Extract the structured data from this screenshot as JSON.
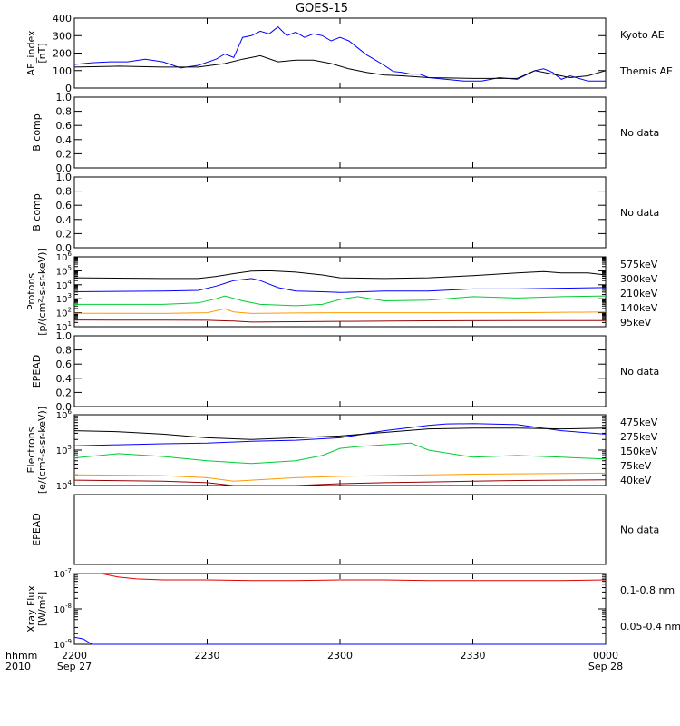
{
  "title": "GOES-15",
  "time_axis": {
    "corner_labels": [
      "hhmm",
      "2010"
    ],
    "ticks": [
      {
        "hhmm": "2200",
        "date": "Sep 27",
        "min": 0
      },
      {
        "hhmm": "2230",
        "date": "",
        "min": 30
      },
      {
        "hhmm": "2300",
        "date": "",
        "min": 60
      },
      {
        "hhmm": "2330",
        "date": "",
        "min": 90
      },
      {
        "hhmm": "0000",
        "date": "Sep 28",
        "min": 120
      }
    ]
  },
  "chart_data": [
    {
      "id": "ae",
      "type": "line",
      "ylabel": [
        "AE_index",
        "[nT]"
      ],
      "scale": "linear",
      "ylim": [
        0,
        400
      ],
      "yticks": [
        0,
        100,
        200,
        300,
        400
      ],
      "series": [
        {
          "name": "Kyoto AE",
          "color": "#0000ff",
          "x": [
            0,
            4,
            8,
            12,
            16,
            20,
            24,
            28,
            32,
            34,
            36,
            38,
            40,
            42,
            44,
            46,
            48,
            50,
            52,
            54,
            56,
            58,
            60,
            62,
            64,
            66,
            68,
            70,
            72,
            74,
            76,
            78,
            80,
            84,
            88,
            92,
            96,
            100,
            104,
            106,
            108,
            110,
            112,
            116,
            120
          ],
          "y": [
            135,
            145,
            150,
            150,
            165,
            150,
            115,
            130,
            165,
            195,
            175,
            290,
            300,
            325,
            310,
            350,
            300,
            320,
            290,
            310,
            300,
            270,
            290,
            270,
            230,
            190,
            160,
            130,
            95,
            90,
            80,
            80,
            60,
            50,
            40,
            40,
            60,
            50,
            100,
            110,
            90,
            50,
            70,
            40,
            40
          ]
        },
        {
          "name": "Themis AE",
          "color": "#000000",
          "x": [
            0,
            10,
            20,
            28,
            34,
            38,
            42,
            46,
            50,
            54,
            58,
            62,
            66,
            70,
            74,
            80,
            90,
            100,
            104,
            108,
            112,
            116,
            120
          ],
          "y": [
            120,
            125,
            120,
            120,
            140,
            165,
            185,
            150,
            160,
            160,
            140,
            110,
            90,
            75,
            70,
            60,
            55,
            55,
            100,
            80,
            60,
            70,
            100
          ]
        }
      ]
    },
    {
      "id": "bcomp1",
      "type": "line",
      "ylabel": [
        "B comp"
      ],
      "scale": "linear",
      "ylim": [
        0,
        1
      ],
      "yticks": [
        0.0,
        0.2,
        0.4,
        0.6,
        0.8,
        1.0
      ],
      "series": [],
      "note": "No data"
    },
    {
      "id": "bcomp2",
      "type": "line",
      "ylabel": [
        "B comp"
      ],
      "scale": "linear",
      "ylim": [
        0,
        1
      ],
      "yticks": [
        0.0,
        0.2,
        0.4,
        0.6,
        0.8,
        1.0
      ],
      "series": [],
      "note": "No data"
    },
    {
      "id": "protons",
      "type": "line",
      "ylabel": [
        "Protons",
        "[p/(cm²-s-sr-keV)]"
      ],
      "scale": "log",
      "ylim": [
        10,
        1000000
      ],
      "yticks": [
        1,
        2,
        3,
        4,
        5,
        6
      ],
      "series": [
        {
          "name": "575keV",
          "color": "#990000",
          "x": [
            0,
            20,
            30,
            36,
            40,
            50,
            60,
            80,
            100,
            120
          ],
          "y": [
            1.48,
            1.47,
            1.46,
            1.4,
            1.33,
            1.36,
            1.38,
            1.42,
            1.44,
            1.44
          ]
        },
        {
          "name": "300keV",
          "color": "#ff9900",
          "x": [
            0,
            20,
            30,
            34,
            36,
            40,
            50,
            60,
            80,
            100,
            120
          ],
          "y": [
            1.96,
            1.95,
            2.0,
            2.28,
            2.05,
            1.95,
            1.98,
            2.0,
            2.0,
            2.0,
            2.05
          ]
        },
        {
          "name": "210keV",
          "color": "#00cc33",
          "x": [
            0,
            20,
            28,
            32,
            34,
            38,
            42,
            50,
            56,
            60,
            64,
            70,
            80,
            90,
            100,
            110,
            120
          ],
          "y": [
            2.6,
            2.6,
            2.7,
            3.0,
            3.2,
            2.85,
            2.6,
            2.5,
            2.6,
            2.95,
            3.15,
            2.85,
            2.9,
            3.15,
            3.05,
            3.15,
            3.2
          ]
        },
        {
          "name": "140keV",
          "color": "#0000ff",
          "x": [
            0,
            20,
            28,
            32,
            36,
            40,
            42,
            46,
            50,
            56,
            60,
            70,
            80,
            90,
            100,
            110,
            120
          ],
          "y": [
            3.5,
            3.55,
            3.6,
            3.9,
            4.3,
            4.45,
            4.3,
            3.8,
            3.55,
            3.5,
            3.45,
            3.55,
            3.55,
            3.7,
            3.7,
            3.75,
            3.8
          ]
        },
        {
          "name": "95keV",
          "color": "#000000",
          "x": [
            0,
            20,
            28,
            32,
            36,
            40,
            44,
            50,
            56,
            60,
            70,
            80,
            90,
            100,
            106,
            110,
            116,
            120
          ],
          "y": [
            4.5,
            4.45,
            4.45,
            4.6,
            4.8,
            4.98,
            5.0,
            4.9,
            4.7,
            4.5,
            4.45,
            4.5,
            4.65,
            4.85,
            4.95,
            4.85,
            4.85,
            4.7
          ]
        }
      ]
    },
    {
      "id": "epead1",
      "type": "line",
      "ylabel": [
        "EPEAD"
      ],
      "scale": "linear",
      "ylim": [
        0,
        1
      ],
      "yticks": [
        0.0,
        0.2,
        0.4,
        0.6,
        0.8,
        1.0
      ],
      "series": [],
      "note": "No data"
    },
    {
      "id": "electrons",
      "type": "line",
      "ylabel": [
        "Electrons",
        "[e/(cm²-s-sr-keV)]"
      ],
      "scale": "log",
      "ylim": [
        10000,
        1000000
      ],
      "yticks": [
        4,
        5,
        6
      ],
      "series": [
        {
          "name": "475keV",
          "color": "#990000",
          "x": [
            0,
            20,
            30,
            36,
            40,
            50,
            60,
            70,
            80,
            90,
            100,
            110,
            120
          ],
          "y": [
            4.15,
            4.12,
            4.08,
            3.98,
            3.95,
            4.0,
            4.05,
            4.08,
            4.1,
            4.12,
            4.14,
            4.15,
            4.16
          ]
        },
        {
          "name": "275keV",
          "color": "#ff9900",
          "x": [
            0,
            20,
            30,
            36,
            40,
            50,
            60,
            70,
            80,
            90,
            100,
            110,
            120
          ],
          "y": [
            4.3,
            4.28,
            4.22,
            4.12,
            4.15,
            4.22,
            4.26,
            4.28,
            4.3,
            4.32,
            4.33,
            4.34,
            4.35
          ]
        },
        {
          "name": "150keV",
          "color": "#00cc33",
          "x": [
            0,
            10,
            20,
            30,
            40,
            50,
            56,
            60,
            64,
            70,
            76,
            80,
            90,
            100,
            110,
            120
          ],
          "y": [
            4.78,
            4.9,
            4.82,
            4.7,
            4.62,
            4.7,
            4.85,
            5.05,
            5.1,
            5.15,
            5.2,
            5.0,
            4.8,
            4.85,
            4.8,
            4.75
          ]
        },
        {
          "name": "75keV",
          "color": "#0000ff",
          "x": [
            0,
            10,
            20,
            30,
            40,
            50,
            60,
            70,
            80,
            84,
            90,
            100,
            110,
            120
          ],
          "y": [
            5.12,
            5.15,
            5.18,
            5.2,
            5.25,
            5.28,
            5.35,
            5.55,
            5.7,
            5.74,
            5.75,
            5.72,
            5.55,
            5.45
          ]
        },
        {
          "name": "40keV",
          "color": "#000000",
          "x": [
            0,
            10,
            20,
            30,
            40,
            50,
            60,
            70,
            80,
            90,
            100,
            110,
            120
          ],
          "y": [
            5.55,
            5.52,
            5.45,
            5.35,
            5.3,
            5.35,
            5.4,
            5.5,
            5.6,
            5.62,
            5.62,
            5.6,
            5.62
          ]
        }
      ]
    },
    {
      "id": "epead2",
      "type": "line",
      "ylabel": [
        "EPEAD"
      ],
      "scale": "linear",
      "ylim": [
        0,
        1
      ],
      "yticks": [],
      "series": [],
      "note": "No data"
    },
    {
      "id": "xray",
      "type": "line",
      "ylabel": [
        "Xray Flux",
        "[W/m²]"
      ],
      "scale": "log",
      "ylim": [
        1e-09,
        1e-07
      ],
      "yticks": [
        -9,
        -8,
        -7
      ],
      "series": [
        {
          "name": "0.1-0.8 nm",
          "color": "#dd0000",
          "x": [
            0,
            2,
            4,
            6,
            8,
            10,
            14,
            20,
            30,
            40,
            50,
            60,
            70,
            80,
            90,
            100,
            110,
            120
          ],
          "y": [
            -6.88,
            -6.92,
            -6.96,
            -7.0,
            -7.05,
            -7.1,
            -7.15,
            -7.18,
            -7.18,
            -7.2,
            -7.2,
            -7.18,
            -7.18,
            -7.2,
            -7.2,
            -7.2,
            -7.2,
            -7.18
          ]
        },
        {
          "name": "0.05-0.4 nm",
          "color": "#0000ff",
          "x": [
            0,
            2,
            4,
            6,
            8,
            10,
            14,
            20,
            30,
            40,
            50,
            60,
            70,
            80,
            90,
            100,
            110,
            120
          ],
          "y": [
            -8.8,
            -8.85,
            -9.05,
            -9.3,
            -9.5,
            -9.7,
            -9.85,
            -9.9,
            -9.92,
            -9.9,
            -9.92,
            -9.92,
            -9.9,
            -9.92,
            -9.92,
            -9.92,
            -9.9,
            -9.92
          ]
        }
      ]
    }
  ]
}
